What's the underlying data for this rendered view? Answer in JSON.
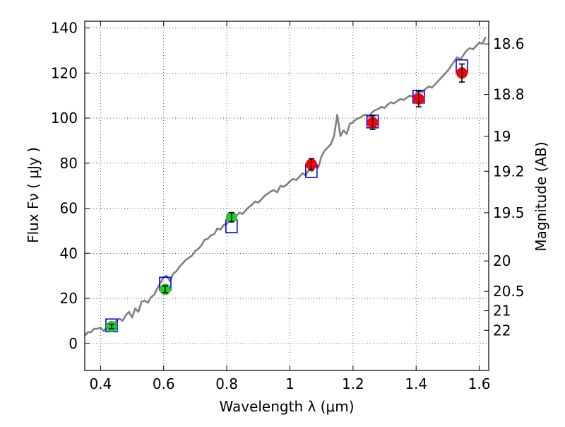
{
  "chart_data": {
    "type": "scatter",
    "title": "",
    "xlabel": "Wavelength  λ (μm)",
    "ylabel": "Flux  Fν  ( μJy )",
    "y2label": "Magnitude (AB)",
    "xlim": [
      0.35,
      1.63
    ],
    "ylim": [
      -12,
      143
    ],
    "x_ticks": [
      0.4,
      0.6,
      0.8,
      1.0,
      1.2,
      1.4,
      1.6
    ],
    "x_tick_labels": [
      "0.4",
      "0.6",
      "0.8",
      "1",
      "1.2",
      "1.4",
      "1.6"
    ],
    "y_ticks": [
      0,
      20,
      40,
      60,
      80,
      100,
      120,
      140
    ],
    "y_tick_labels": [
      "0",
      "20",
      "40",
      "60",
      "80",
      "100",
      "120",
      "140"
    ],
    "magnitude_ticks": [
      {
        "label": "18.6",
        "flux": 132.9
      },
      {
        "label": "18.8",
        "flux": 110.5
      },
      {
        "label": "19",
        "flux": 91.9
      },
      {
        "label": "19.2",
        "flux": 76.4
      },
      {
        "label": "19.5",
        "flux": 58.0
      },
      {
        "label": "20",
        "flux": 36.6
      },
      {
        "label": "20.5",
        "flux": 23.1
      },
      {
        "label": "21",
        "flux": 14.5
      },
      {
        "label": "22",
        "flux": 5.8
      }
    ],
    "grid": true,
    "colors": {
      "model": "#808080",
      "optical_points": "#22cc22",
      "nir_points": "#ff0000",
      "model_photometry": "#0000ff",
      "errorbar": "#000000"
    },
    "series": [
      {
        "kind": "model_spectrum",
        "x": [
          0.35,
          0.36,
          0.37,
          0.38,
          0.39,
          0.4,
          0.41,
          0.42,
          0.43,
          0.44,
          0.45,
          0.46,
          0.47,
          0.48,
          0.49,
          0.5,
          0.51,
          0.52,
          0.53,
          0.54,
          0.55,
          0.56,
          0.57,
          0.58,
          0.59,
          0.6,
          0.61,
          0.62,
          0.63,
          0.64,
          0.65,
          0.66,
          0.67,
          0.68,
          0.69,
          0.7,
          0.71,
          0.72,
          0.73,
          0.74,
          0.75,
          0.76,
          0.77,
          0.78,
          0.79,
          0.8,
          0.81,
          0.82,
          0.83,
          0.84,
          0.85,
          0.86,
          0.87,
          0.88,
          0.89,
          0.9,
          0.91,
          0.92,
          0.93,
          0.94,
          0.95,
          0.96,
          0.97,
          0.98,
          0.99,
          1.0,
          1.01,
          1.02,
          1.03,
          1.04,
          1.05,
          1.06,
          1.07,
          1.08,
          1.09,
          1.1,
          1.11,
          1.12,
          1.13,
          1.14,
          1.15,
          1.16,
          1.17,
          1.18,
          1.19,
          1.2,
          1.21,
          1.22,
          1.23,
          1.24,
          1.25,
          1.26,
          1.27,
          1.28,
          1.29,
          1.3,
          1.31,
          1.32,
          1.33,
          1.34,
          1.35,
          1.36,
          1.37,
          1.38,
          1.39,
          1.4,
          1.41,
          1.42,
          1.43,
          1.44,
          1.45,
          1.46,
          1.47,
          1.48,
          1.49,
          1.5,
          1.51,
          1.52,
          1.53,
          1.54,
          1.55,
          1.56,
          1.57,
          1.58,
          1.59,
          1.6,
          1.61,
          1.62
        ],
        "y": [
          3.5,
          5.0,
          5.0,
          6.5,
          6.5,
          7.0,
          5.5,
          7.0,
          7.5,
          8.0,
          10.0,
          11.0,
          10.0,
          12.5,
          14.0,
          11.5,
          15.5,
          14.0,
          18.5,
          19.0,
          18.0,
          20.5,
          21.5,
          24.5,
          27.0,
          29.5,
          30.0,
          27.5,
          31.0,
          32.0,
          34.0,
          35.5,
          37.0,
          38.0,
          39.0,
          41.0,
          42.0,
          43.5,
          46.0,
          46.5,
          48.0,
          48.5,
          51.0,
          50.5,
          52.5,
          53.0,
          55.0,
          54.5,
          56.5,
          58.0,
          57.5,
          59.0,
          60.5,
          61.5,
          63.0,
          62.5,
          64.0,
          65.5,
          66.5,
          67.5,
          68.0,
          67.0,
          70.0,
          69.5,
          70.5,
          72.0,
          73.0,
          72.5,
          74.0,
          75.5,
          74.5,
          77.0,
          76.5,
          80.5,
          78.0,
          83.0,
          85.5,
          87.0,
          88.5,
          92.0,
          101.5,
          92.0,
          94.5,
          93.0,
          97.5,
          98.0,
          99.5,
          100.0,
          101.0,
          101.5,
          100.5,
          102.5,
          103.5,
          104.0,
          105.0,
          104.5,
          106.0,
          107.0,
          106.5,
          107.5,
          108.5,
          108.0,
          109.0,
          110.0,
          109.5,
          111.0,
          112.0,
          111.5,
          113.0,
          114.0,
          113.5,
          115.0,
          116.5,
          118.0,
          119.5,
          121.0,
          123.0,
          125.0,
          127.0,
          126.0,
          128.0,
          130.0,
          131.0,
          130.5,
          132.0,
          133.5,
          133.0,
          136.0
        ]
      },
      {
        "kind": "observed_optical",
        "x": [
          0.435,
          0.605,
          0.815
        ],
        "y": [
          7.5,
          24.0,
          56.0
        ],
        "yerr": [
          1.0,
          1.5,
          2.0
        ]
      },
      {
        "kind": "observed_nir",
        "x": [
          1.068,
          1.262,
          1.408,
          1.545
        ],
        "y": [
          79.5,
          98.0,
          108.5,
          120.0
        ],
        "yerr": [
          2.5,
          3.0,
          3.5,
          4.0
        ]
      },
      {
        "kind": "model_photometry",
        "x": [
          0.435,
          0.605,
          0.815,
          1.068,
          1.262,
          1.408,
          1.545
        ],
        "y": [
          8.0,
          26.5,
          52.0,
          76.5,
          98.5,
          109.5,
          123.0
        ]
      }
    ]
  }
}
